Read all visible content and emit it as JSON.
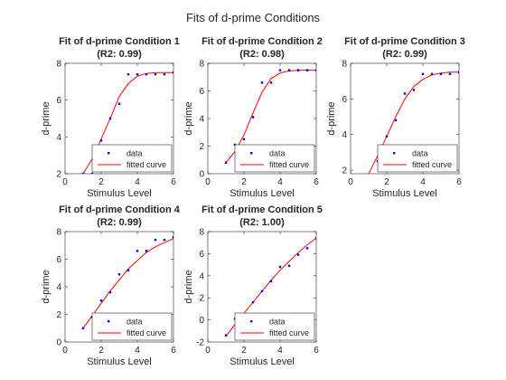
{
  "figure_title": "Fits of d-prime Conditions",
  "colors": {
    "data": "#0000ff",
    "fit": "#ff0000",
    "axis": "#262626",
    "legend_border": "#262626"
  },
  "chart_data": [
    {
      "type": "line",
      "title": "Fit of d-prime Condition 1",
      "subtitle": "(R2: 0.99)",
      "xlabel": "Stimulus Level",
      "ylabel": "d-prime",
      "xlim": [
        0,
        6
      ],
      "ylim": [
        2,
        8
      ],
      "xticks": [
        "0",
        "2",
        "4",
        "6"
      ],
      "yticks": [
        "2",
        "4",
        "6",
        "8"
      ],
      "grid": false,
      "legend": "bottom-right",
      "series": [
        {
          "name": "data",
          "x": [
            1,
            1.5,
            2,
            2.5,
            3,
            3.5,
            4,
            4.5,
            5,
            5.5,
            6
          ],
          "y": [
            2.0,
            2.0,
            3.8,
            5.0,
            5.8,
            7.4,
            7.4,
            7.4,
            7.4,
            7.4,
            7.5
          ]
        },
        {
          "name": "fitted curve",
          "x": [
            1,
            1.5,
            2,
            2.5,
            3,
            3.5,
            4,
            4.5,
            5,
            5.5,
            6
          ],
          "y": [
            2.0,
            2.8,
            3.9,
            5.0,
            6.2,
            6.9,
            7.3,
            7.45,
            7.5,
            7.5,
            7.5
          ]
        }
      ]
    },
    {
      "type": "line",
      "title": "Fit of d-prime Condition 2",
      "subtitle": "(R2: 0.98)",
      "xlabel": "Stimulus Level",
      "ylabel": "d-prime",
      "xlim": [
        0,
        6
      ],
      "ylim": [
        0,
        8
      ],
      "xticks": [
        "0",
        "2",
        "4",
        "6"
      ],
      "yticks": [
        "0",
        "2",
        "4",
        "6",
        "8"
      ],
      "grid": false,
      "legend": "bottom-right",
      "series": [
        {
          "name": "data",
          "x": [
            1,
            1.5,
            2,
            2.5,
            3,
            3.5,
            4,
            4.5,
            5,
            5.5,
            6
          ],
          "y": [
            0.8,
            2.1,
            2.5,
            4.1,
            6.6,
            6.6,
            7.5,
            7.5,
            7.5,
            7.5,
            7.5
          ]
        },
        {
          "name": "fitted curve",
          "x": [
            1,
            1.5,
            2,
            2.5,
            3,
            3.5,
            4,
            4.5,
            5,
            5.5,
            6
          ],
          "y": [
            0.8,
            1.6,
            2.8,
            4.4,
            5.9,
            6.9,
            7.3,
            7.45,
            7.5,
            7.5,
            7.5
          ]
        }
      ]
    },
    {
      "type": "line",
      "title": "Fit of d-prime Condition 3",
      "subtitle": "(R2: 0.99)",
      "xlabel": "Stimulus Level",
      "ylabel": "d-prime",
      "xlim": [
        0,
        6
      ],
      "ylim": [
        1.8,
        8
      ],
      "xticks": [
        "0",
        "2",
        "4",
        "6"
      ],
      "yticks": [
        "2",
        "4",
        "6",
        "8"
      ],
      "grid": false,
      "legend": "bottom-right",
      "series": [
        {
          "name": "data",
          "x": [
            1,
            1.5,
            2,
            2.5,
            3,
            3.5,
            4,
            4.5,
            5,
            5.5,
            6
          ],
          "y": [
            1.2,
            2.5,
            3.9,
            4.8,
            6.3,
            6.5,
            7.4,
            7.4,
            7.4,
            7.4,
            7.5
          ]
        },
        {
          "name": "fitted curve",
          "x": [
            1,
            1.5,
            2,
            2.5,
            3,
            3.5,
            4,
            4.5,
            5,
            5.5,
            6
          ],
          "y": [
            1.8,
            2.8,
            3.9,
            5.0,
            6.0,
            6.7,
            7.1,
            7.35,
            7.45,
            7.5,
            7.5
          ]
        }
      ]
    },
    {
      "type": "line",
      "title": "Fit of d-prime Condition 4",
      "subtitle": "(R2: 0.99)",
      "xlabel": "Stimulus Level",
      "ylabel": "d-prime",
      "xlim": [
        0,
        6
      ],
      "ylim": [
        0,
        8
      ],
      "xticks": [
        "0",
        "2",
        "4",
        "6"
      ],
      "yticks": [
        "0",
        "2",
        "4",
        "6",
        "8"
      ],
      "grid": false,
      "legend": "bottom-right",
      "series": [
        {
          "name": "data",
          "x": [
            1,
            1.5,
            2,
            2.5,
            3,
            3.5,
            4,
            4.5,
            5,
            5.5,
            6
          ],
          "y": [
            1.0,
            1.8,
            3.0,
            3.6,
            4.9,
            5.2,
            6.6,
            6.6,
            7.4,
            7.4,
            7.6
          ]
        },
        {
          "name": "fitted curve",
          "x": [
            1,
            1.5,
            2,
            2.5,
            3,
            3.5,
            4,
            4.5,
            5,
            5.5,
            6
          ],
          "y": [
            1.0,
            1.9,
            2.8,
            3.7,
            4.5,
            5.3,
            5.9,
            6.5,
            6.9,
            7.2,
            7.5
          ]
        }
      ]
    },
    {
      "type": "line",
      "title": "Fit of d-prime Condition 5",
      "subtitle": "(R2: 1.00)",
      "xlabel": "Stimulus Level",
      "ylabel": "d-prime",
      "xlim": [
        0,
        6
      ],
      "ylim": [
        -2,
        8
      ],
      "xticks": [
        "0",
        "2",
        "4",
        "6"
      ],
      "yticks": [
        "-2",
        "0",
        "2",
        "4",
        "6",
        "8"
      ],
      "grid": false,
      "legend": "bottom-right",
      "series": [
        {
          "name": "data",
          "x": [
            1,
            1.5,
            2,
            2.5,
            3,
            3.5,
            4,
            4.5,
            5,
            5.5,
            6
          ],
          "y": [
            -1.4,
            0.1,
            0.4,
            1.6,
            2.6,
            3.5,
            4.8,
            4.9,
            5.9,
            6.5,
            7.4
          ]
        },
        {
          "name": "fitted curve",
          "x": [
            1,
            1.5,
            2,
            2.5,
            3,
            3.5,
            4,
            4.5,
            5,
            5.5,
            6
          ],
          "y": [
            -1.5,
            -0.4,
            0.6,
            1.6,
            2.6,
            3.6,
            4.5,
            5.3,
            6.1,
            6.8,
            7.4
          ]
        }
      ]
    }
  ]
}
